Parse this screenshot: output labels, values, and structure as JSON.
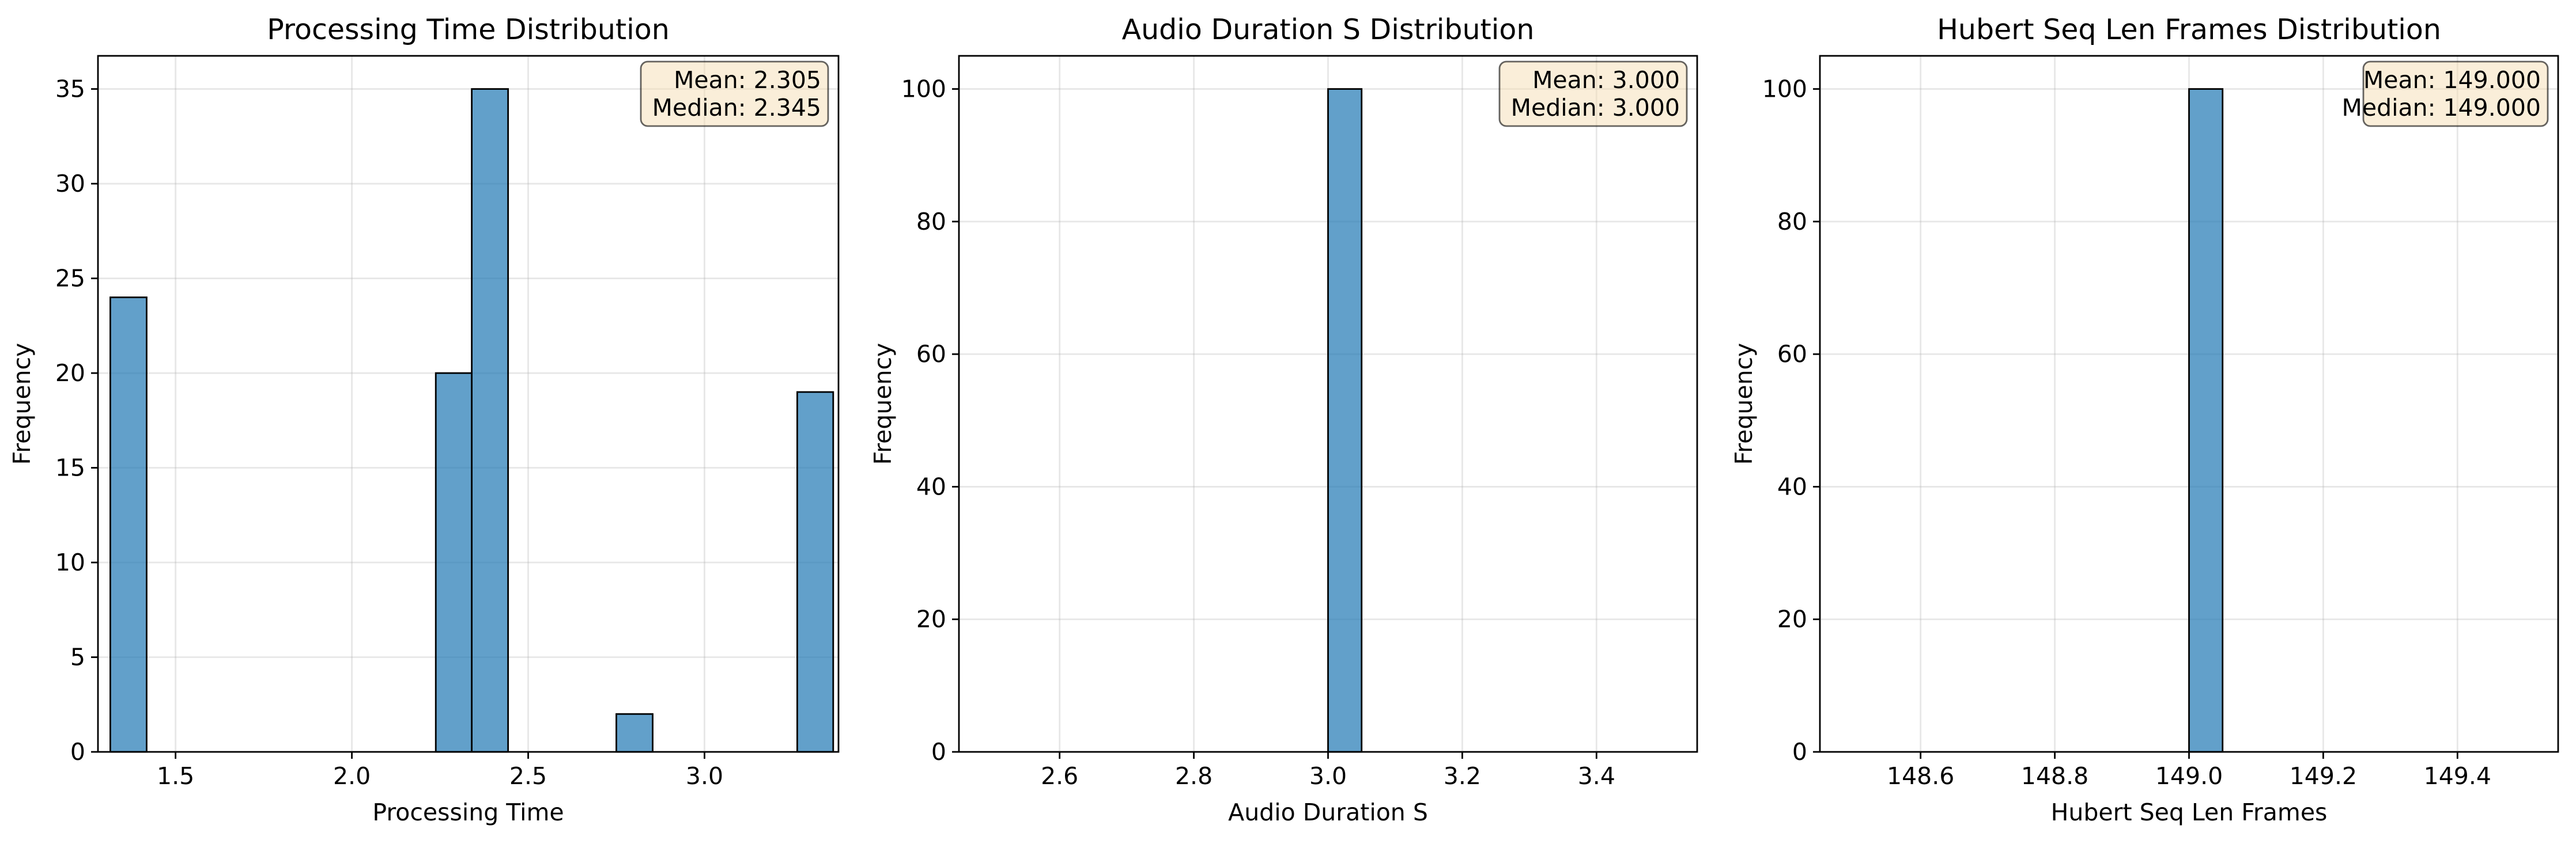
{
  "chart_data": [
    {
      "type": "bar",
      "title": "Processing Time Distribution",
      "xlabel": "Processing Time",
      "ylabel": "Frequency",
      "xlim": [
        1.28,
        3.38
      ],
      "ylim": [
        0,
        36.75
      ],
      "xticks": [
        1.5,
        2.0,
        2.5,
        3.0
      ],
      "xtick_labels": [
        "1.5",
        "2.0",
        "2.5",
        "3.0"
      ],
      "yticks": [
        0,
        5,
        10,
        15,
        20,
        25,
        30,
        35
      ],
      "ytick_labels": [
        "0",
        "5",
        "10",
        "15",
        "20",
        "25",
        "30",
        "35"
      ],
      "bin_edges": [
        1.315,
        1.418,
        1.52,
        1.623,
        1.725,
        1.828,
        1.93,
        2.033,
        2.135,
        2.238,
        2.34,
        2.443,
        2.545,
        2.648,
        2.75,
        2.853,
        2.955,
        3.058,
        3.16,
        3.263,
        3.365
      ],
      "counts": [
        24,
        0,
        0,
        0,
        0,
        0,
        0,
        0,
        0,
        20,
        35,
        0,
        0,
        0,
        2,
        0,
        0,
        0,
        0,
        19
      ],
      "annotation": {
        "mean": "Mean: 2.305",
        "median": "Median: 2.345"
      },
      "grid": true
    },
    {
      "type": "bar",
      "title": "Audio Duration S Distribution",
      "xlabel": "Audio Duration S",
      "ylabel": "Frequency",
      "xlim": [
        2.45,
        3.55
      ],
      "ylim": [
        0,
        105
      ],
      "xticks": [
        2.6,
        2.8,
        3.0,
        3.2,
        3.4
      ],
      "xtick_labels": [
        "2.6",
        "2.8",
        "3.0",
        "3.2",
        "3.4"
      ],
      "yticks": [
        0,
        20,
        40,
        60,
        80,
        100
      ],
      "ytick_labels": [
        "0",
        "20",
        "40",
        "60",
        "80",
        "100"
      ],
      "bin_edges": [
        2.5,
        2.55,
        2.6,
        2.65,
        2.7,
        2.75,
        2.8,
        2.85,
        2.9,
        2.95,
        3.0,
        3.05,
        3.1,
        3.15,
        3.2,
        3.25,
        3.3,
        3.35,
        3.4,
        3.45,
        3.5
      ],
      "counts": [
        0,
        0,
        0,
        0,
        0,
        0,
        0,
        0,
        0,
        0,
        100,
        0,
        0,
        0,
        0,
        0,
        0,
        0,
        0,
        0
      ],
      "annotation": {
        "mean": "Mean: 3.000",
        "median": "Median: 3.000"
      },
      "grid": true
    },
    {
      "type": "bar",
      "title": "Hubert Seq Len Frames Distribution",
      "xlabel": "Hubert Seq Len Frames",
      "ylabel": "Frequency",
      "xlim": [
        148.45,
        149.55
      ],
      "ylim": [
        0,
        105
      ],
      "xticks": [
        148.6,
        148.8,
        149.0,
        149.2,
        149.4
      ],
      "xtick_labels": [
        "148.6",
        "148.8",
        "149.0",
        "149.2",
        "149.4"
      ],
      "yticks": [
        0,
        20,
        40,
        60,
        80,
        100
      ],
      "ytick_labels": [
        "0",
        "20",
        "40",
        "60",
        "80",
        "100"
      ],
      "bin_edges": [
        148.5,
        148.55,
        148.6,
        148.65,
        148.7,
        148.75,
        148.8,
        148.85,
        148.9,
        148.95,
        149.0,
        149.05,
        149.1,
        149.15,
        149.2,
        149.25,
        149.3,
        149.35,
        149.4,
        149.45,
        149.5
      ],
      "counts": [
        0,
        0,
        0,
        0,
        0,
        0,
        0,
        0,
        0,
        0,
        100,
        0,
        0,
        0,
        0,
        0,
        0,
        0,
        0,
        0
      ],
      "annotation": {
        "mean": "Mean: 149.000",
        "median": "Median: 149.000"
      },
      "grid": true
    }
  ]
}
